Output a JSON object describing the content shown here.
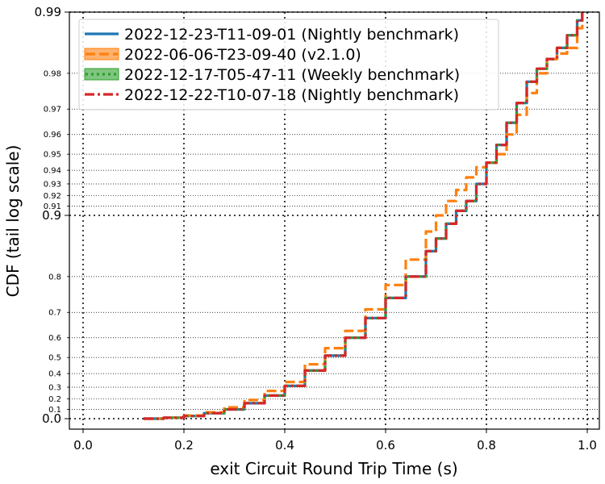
{
  "chart_data": {
    "type": "line",
    "title": "",
    "xlabel": "exit Circuit Round Trip Time (s)",
    "ylabel": "CDF (tail log scale)",
    "xlim": [
      -0.03,
      1.03
    ],
    "y_scale": "tail log (1 - CDF)",
    "ylim": [
      0.0,
      0.99
    ],
    "grid": "dotted",
    "legend_position": "top-left",
    "x_ticks": [
      "0.0",
      "0.2",
      "0.4",
      "0.6",
      "0.8",
      "1.0"
    ],
    "y_ticks_major": [
      "0.0",
      "0.9",
      "0.99"
    ],
    "y_ticks_minor": [
      "0.1",
      "0.2",
      "0.3",
      "0.4",
      "0.5",
      "0.6",
      "0.7",
      "0.8",
      "0.91",
      "0.92",
      "0.93",
      "0.94",
      "0.95",
      "0.96",
      "0.97",
      "0.98"
    ],
    "series": [
      {
        "name": "2022-12-23-T11-09-01 (Nightly benchmark)",
        "color": "#1f77b4",
        "style": "solid",
        "x": [
          0.12,
          0.16,
          0.2,
          0.24,
          0.28,
          0.32,
          0.36,
          0.4,
          0.44,
          0.48,
          0.52,
          0.56,
          0.6,
          0.64,
          0.68,
          0.7,
          0.72,
          0.74,
          0.76,
          0.78,
          0.8,
          0.82,
          0.84,
          0.86,
          0.88,
          0.9,
          0.92,
          0.94,
          0.96,
          0.98,
          0.99
        ],
        "y": [
          0.0,
          0.01,
          0.03,
          0.06,
          0.1,
          0.16,
          0.23,
          0.31,
          0.42,
          0.51,
          0.6,
          0.68,
          0.745,
          0.8,
          0.85,
          0.87,
          0.89,
          0.905,
          0.915,
          0.93,
          0.945,
          0.955,
          0.965,
          0.972,
          0.978,
          0.981,
          0.983,
          0.985,
          0.987,
          0.989,
          0.99
        ]
      },
      {
        "name": "2022-06-06-T23-09-40 (v2.1.0)",
        "color": "#ff7f0e",
        "style": "dashed",
        "x": [
          0.12,
          0.16,
          0.2,
          0.24,
          0.28,
          0.32,
          0.36,
          0.4,
          0.44,
          0.48,
          0.52,
          0.56,
          0.6,
          0.64,
          0.68,
          0.7,
          0.72,
          0.74,
          0.76,
          0.78,
          0.8,
          0.82,
          0.84,
          0.86,
          0.88,
          0.9,
          0.92,
          0.94,
          0.96,
          0.98,
          0.99
        ],
        "y": [
          0.0,
          0.01,
          0.035,
          0.07,
          0.12,
          0.19,
          0.27,
          0.34,
          0.46,
          0.55,
          0.63,
          0.71,
          0.78,
          0.835,
          0.88,
          0.9,
          0.915,
          0.925,
          0.935,
          0.942,
          0.945,
          0.95,
          0.96,
          0.968,
          0.975,
          0.98,
          0.983,
          0.984,
          0.985,
          0.988,
          0.99
        ]
      },
      {
        "name": "2022-12-17-T05-47-11 (Weekly benchmark)",
        "color": "#2ca02c",
        "style": "dotted",
        "x": [
          0.12,
          0.16,
          0.2,
          0.24,
          0.28,
          0.32,
          0.36,
          0.4,
          0.44,
          0.48,
          0.52,
          0.56,
          0.6,
          0.64,
          0.68,
          0.7,
          0.72,
          0.74,
          0.76,
          0.78,
          0.8,
          0.82,
          0.84,
          0.86,
          0.88,
          0.9,
          0.92,
          0.94,
          0.96,
          0.98,
          0.99
        ],
        "y": [
          0.0,
          0.01,
          0.03,
          0.06,
          0.1,
          0.16,
          0.23,
          0.31,
          0.42,
          0.51,
          0.6,
          0.68,
          0.745,
          0.8,
          0.85,
          0.87,
          0.89,
          0.905,
          0.915,
          0.93,
          0.945,
          0.955,
          0.965,
          0.972,
          0.978,
          0.981,
          0.983,
          0.985,
          0.987,
          0.989,
          0.99
        ]
      },
      {
        "name": "2022-12-22-T10-07-18 (Nightly benchmark)",
        "color": "#d62728",
        "style": "dashdot",
        "x": [
          0.12,
          0.16,
          0.2,
          0.24,
          0.28,
          0.32,
          0.36,
          0.4,
          0.44,
          0.48,
          0.52,
          0.56,
          0.6,
          0.64,
          0.68,
          0.7,
          0.72,
          0.74,
          0.76,
          0.78,
          0.8,
          0.82,
          0.84,
          0.86,
          0.88,
          0.9,
          0.92,
          0.94,
          0.96,
          0.98,
          0.99
        ],
        "y": [
          0.0,
          0.01,
          0.03,
          0.06,
          0.1,
          0.16,
          0.23,
          0.31,
          0.42,
          0.51,
          0.6,
          0.68,
          0.745,
          0.8,
          0.85,
          0.87,
          0.89,
          0.905,
          0.915,
          0.93,
          0.945,
          0.955,
          0.965,
          0.972,
          0.978,
          0.981,
          0.983,
          0.985,
          0.987,
          0.989,
          0.99
        ]
      }
    ]
  }
}
